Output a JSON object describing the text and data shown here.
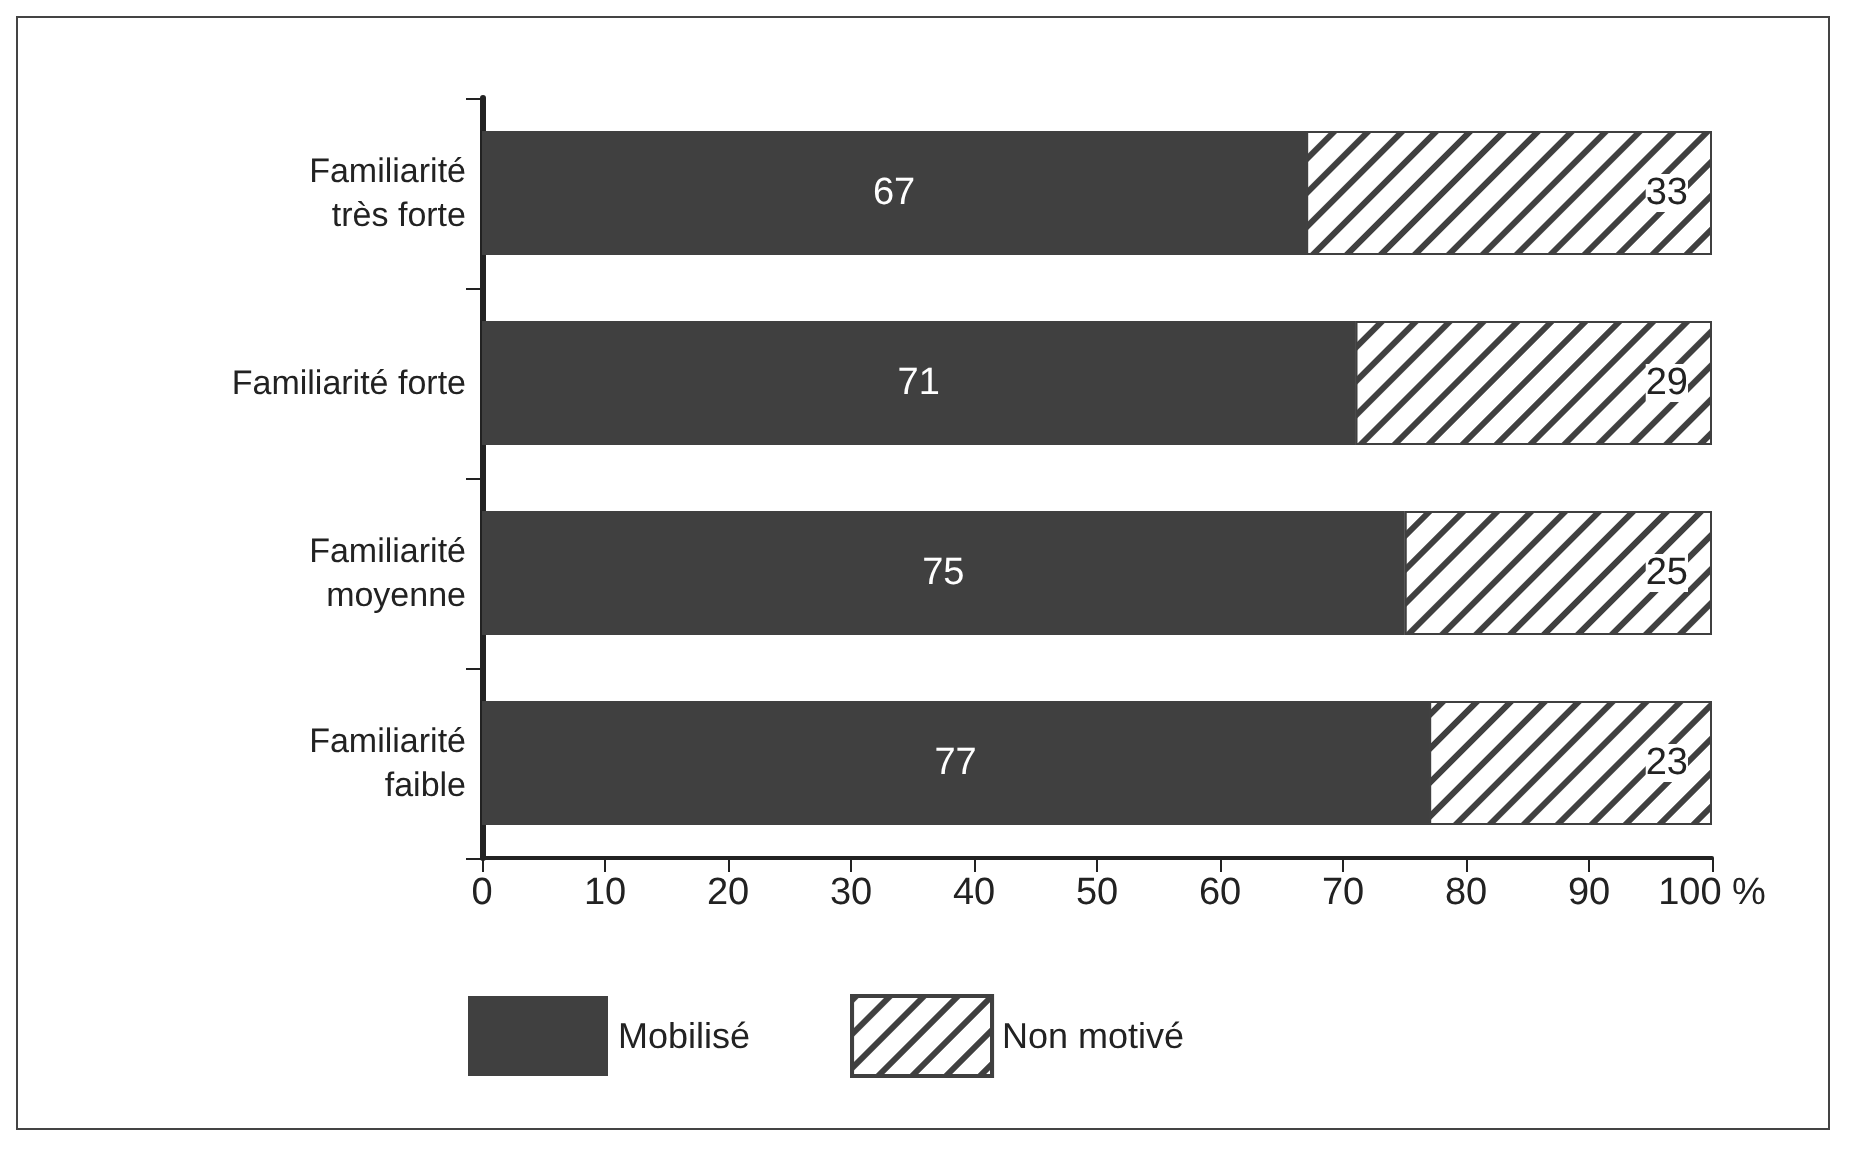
{
  "chart_data": {
    "type": "bar",
    "orientation": "horizontal",
    "stacked": true,
    "categories": [
      "Familiarité\ntrès forte",
      "Familiarité forte",
      "Familiarité\nmoyenne",
      "Familiarité\nfaible"
    ],
    "series": [
      {
        "name": "Mobilisé",
        "color": "#404040",
        "values": [
          67,
          71,
          75,
          77
        ]
      },
      {
        "name": "Non motivé",
        "color": "#ffffff",
        "values": [
          33,
          29,
          25,
          23
        ]
      }
    ],
    "xlim": [
      0,
      100
    ],
    "xticks": [
      0,
      10,
      20,
      30,
      40,
      50,
      60,
      70,
      80,
      90,
      {
        "value": 100,
        "label": "100 %"
      }
    ],
    "grid": false,
    "legend": "bottom left",
    "data_labels": true
  }
}
